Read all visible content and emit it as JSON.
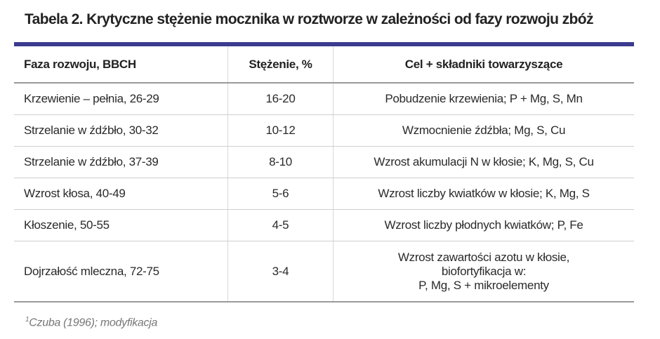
{
  "title": "Tabela 2. Krytyczne stężenie mocznika w roztworze w zależności od fazy rozwoju zbóż",
  "accent_color": "#3b3b8f",
  "headers": [
    "Faza rozwoju, BBCH",
    "Stężenie, %",
    "Cel + składniki towarzyszące"
  ],
  "rows": [
    [
      "Krzewienie – pełnia, 26-29",
      "16-20",
      "Pobudzenie krzewienia; P + Mg, S, Mn"
    ],
    [
      "Strzelanie w źdźbło, 30-32",
      "10-12",
      "Wzmocnienie źdźbła; Mg, S, Cu"
    ],
    [
      "Strzelanie w źdźbło, 37-39",
      "8-10",
      "Wzrost akumulacji N w kłosie; K, Mg, S, Cu"
    ],
    [
      "Wzrost kłosa, 40-49",
      "5-6",
      "Wzrost liczby kwiatków w kłosie; K, Mg, S"
    ],
    [
      "Kłoszenie, 50-55",
      "4-5",
      "Wzrost liczby płodnych kwiatków; P, Fe"
    ],
    [
      "Dojrzałość mleczna, 72-75",
      "3-4",
      [
        "Wzrost zawartości azotu w kłosie,",
        "biofortyfikacja w:",
        "P, Mg, S + mikroelementy"
      ]
    ]
  ],
  "footnote": {
    "marker": "1",
    "text": "Czuba (1996); modyfikacja"
  }
}
